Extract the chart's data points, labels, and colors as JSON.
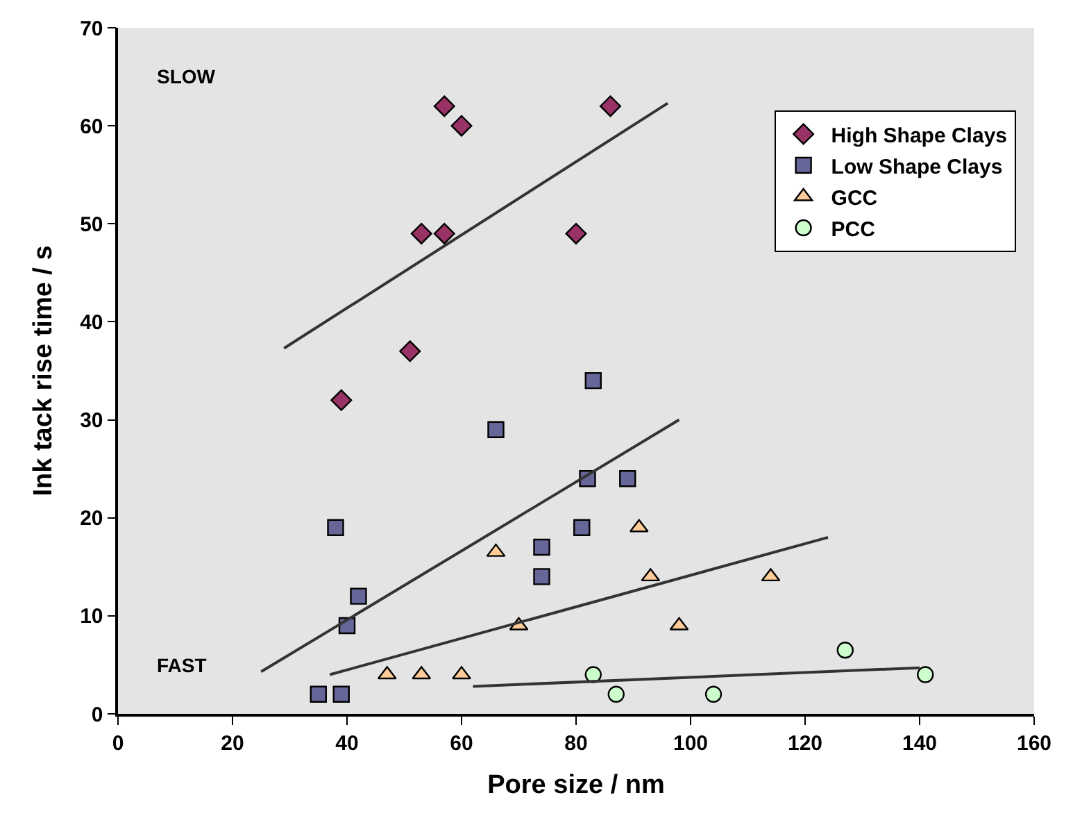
{
  "chart_data": {
    "type": "scatter",
    "xlabel": "Pore size / nm",
    "ylabel": "Ink tack rise time / s",
    "xlim": [
      0,
      160
    ],
    "xticks": [
      0,
      20,
      40,
      60,
      80,
      100,
      120,
      140,
      160
    ],
    "ylim": [
      0,
      70
    ],
    "yticks": [
      0,
      10,
      20,
      30,
      40,
      50,
      60,
      70
    ],
    "grid": false,
    "legend": "top right",
    "annotations": [
      "SLOW",
      "FAST"
    ],
    "series": [
      {
        "name": "High Shape Clays",
        "color": "#993366",
        "marker": "diamond",
        "x": [
          39,
          51,
          53,
          57,
          57,
          60,
          80,
          86
        ],
        "values": [
          32,
          37,
          49,
          49,
          62,
          60,
          49,
          62
        ]
      },
      {
        "name": "Low Shape Clays",
        "color": "#666699",
        "marker": "square",
        "x": [
          35,
          39,
          38,
          40,
          42,
          66,
          74,
          74,
          81,
          82,
          83,
          89
        ],
        "values": [
          2,
          2,
          19,
          9,
          12,
          29,
          17,
          14,
          19,
          24,
          34,
          24
        ]
      },
      {
        "name": "GCC",
        "color": "#ffcc99",
        "marker": "triangle",
        "x": [
          47,
          53,
          60,
          66,
          70,
          91,
          93,
          98,
          114
        ],
        "values": [
          4,
          4,
          4,
          16.5,
          9,
          19,
          14,
          9,
          14
        ]
      },
      {
        "name": "PCC",
        "color": "#ccffcc",
        "marker": "circle",
        "x": [
          83,
          87,
          104,
          127,
          141
        ],
        "values": [
          4,
          2,
          2,
          6.5,
          4
        ]
      },
      {
        "type": "line",
        "color": "#333333",
        "marker": "none",
        "x": [
          29,
          96
        ],
        "values": [
          37.3,
          62.3
        ]
      },
      {
        "type": "line",
        "color": "#333333",
        "marker": "none",
        "x": [
          25,
          98
        ],
        "values": [
          4.3,
          30
        ]
      },
      {
        "type": "line",
        "color": "#333333",
        "marker": "none",
        "x": [
          37,
          124
        ],
        "values": [
          4,
          18
        ]
      },
      {
        "type": "line",
        "color": "#333333",
        "marker": "none",
        "x": [
          62,
          140
        ],
        "values": [
          2.8,
          4.7
        ]
      }
    ]
  }
}
